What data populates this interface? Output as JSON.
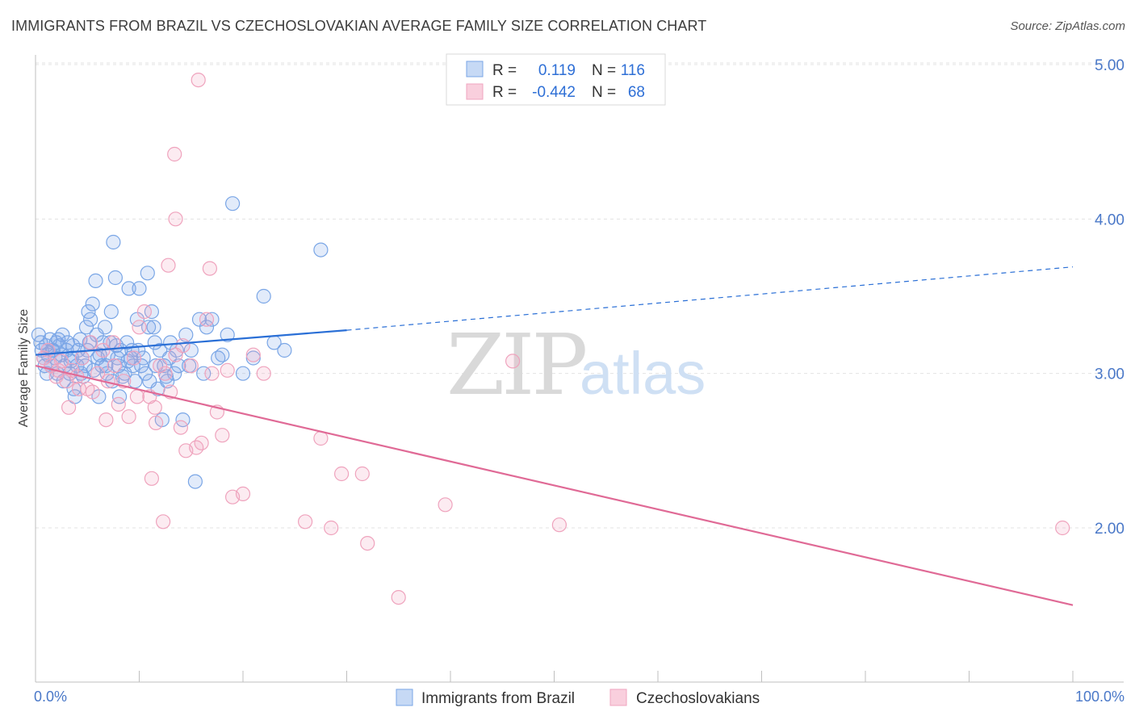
{
  "chart_data": {
    "type": "scatter",
    "title": "IMMIGRANTS FROM BRAZIL VS CZECHOSLOVAKIAN AVERAGE FAMILY SIZE CORRELATION CHART",
    "source": "Source: ZipAtlas.com",
    "ylabel": "Average Family Size",
    "xlim": [
      0,
      100
    ],
    "ylim": [
      1.0,
      5.2
    ],
    "x_tick_labels": [
      "0.0%",
      "100.0%"
    ],
    "y_ticks": [
      {
        "value": 5.0,
        "label": "5.00"
      },
      {
        "value": 4.0,
        "label": "4.00"
      },
      {
        "value": 3.0,
        "label": "3.00"
      },
      {
        "value": 2.0,
        "label": "2.00"
      }
    ],
    "grid": "horizontal-dashed",
    "legend_position": "top-center",
    "watermark": [
      "ZIP",
      "atlas"
    ],
    "series": [
      {
        "name": "Immigrants from Brazil",
        "color": "#7aa6e6",
        "line_color": "#2a6fd6",
        "r_label": "R =",
        "r_value": " 0.119",
        "n_label": "N =",
        "n_value": "116",
        "trend": {
          "x0": 0,
          "y0": 3.12,
          "x1": 30,
          "y1": 3.28,
          "dash_x1": 100,
          "dash_y1": 3.69
        },
        "points": [
          [
            0.3,
            3.25
          ],
          [
            0.5,
            3.2
          ],
          [
            0.6,
            3.15
          ],
          [
            0.8,
            3.1
          ],
          [
            1.0,
            3.18
          ],
          [
            1.2,
            3.12
          ],
          [
            1.4,
            3.22
          ],
          [
            1.5,
            3.05
          ],
          [
            1.7,
            3.15
          ],
          [
            1.9,
            3.1
          ],
          [
            2.0,
            3.2
          ],
          [
            2.1,
            3.0
          ],
          [
            2.3,
            3.18
          ],
          [
            2.5,
            3.12
          ],
          [
            2.6,
            3.25
          ],
          [
            2.8,
            3.05
          ],
          [
            3.0,
            3.15
          ],
          [
            3.1,
            3.2
          ],
          [
            3.3,
            3.0
          ],
          [
            3.5,
            3.1
          ],
          [
            3.6,
            3.18
          ],
          [
            3.8,
            2.85
          ],
          [
            4.0,
            3.05
          ],
          [
            4.1,
            3.15
          ],
          [
            4.3,
            3.22
          ],
          [
            4.5,
            3.1
          ],
          [
            4.6,
            2.98
          ],
          [
            4.8,
            3.05
          ],
          [
            5.0,
            3.15
          ],
          [
            5.2,
            3.2
          ],
          [
            5.3,
            3.35
          ],
          [
            5.5,
            3.45
          ],
          [
            5.6,
            3.02
          ],
          [
            5.8,
            3.6
          ],
          [
            6.0,
            3.1
          ],
          [
            6.2,
            3.12
          ],
          [
            6.4,
            3.05
          ],
          [
            6.5,
            3.2
          ],
          [
            6.7,
            3.3
          ],
          [
            6.9,
            3.0
          ],
          [
            7.0,
            3.12
          ],
          [
            7.2,
            3.2
          ],
          [
            7.4,
            2.95
          ],
          [
            7.5,
            3.85
          ],
          [
            7.7,
            3.62
          ],
          [
            7.9,
            3.1
          ],
          [
            8.0,
            3.05
          ],
          [
            8.2,
            3.15
          ],
          [
            8.4,
            2.98
          ],
          [
            8.6,
            3.0
          ],
          [
            8.8,
            3.2
          ],
          [
            9.0,
            3.55
          ],
          [
            9.2,
            3.1
          ],
          [
            9.4,
            3.05
          ],
          [
            9.6,
            2.95
          ],
          [
            9.8,
            3.35
          ],
          [
            10.0,
            3.55
          ],
          [
            10.2,
            3.05
          ],
          [
            10.4,
            3.1
          ],
          [
            10.6,
            3.0
          ],
          [
            10.8,
            3.65
          ],
          [
            11.0,
            2.95
          ],
          [
            11.2,
            3.4
          ],
          [
            11.4,
            3.3
          ],
          [
            11.6,
            3.05
          ],
          [
            11.8,
            2.9
          ],
          [
            12.0,
            3.15
          ],
          [
            12.2,
            2.7
          ],
          [
            12.4,
            3.05
          ],
          [
            12.6,
            2.98
          ],
          [
            13.0,
            3.2
          ],
          [
            13.4,
            3.0
          ],
          [
            13.8,
            3.05
          ],
          [
            14.2,
            2.7
          ],
          [
            14.5,
            3.25
          ],
          [
            15.0,
            3.15
          ],
          [
            15.4,
            2.3
          ],
          [
            15.8,
            3.35
          ],
          [
            16.2,
            3.0
          ],
          [
            17.0,
            3.35
          ],
          [
            17.6,
            3.1
          ],
          [
            18.5,
            3.25
          ],
          [
            19.0,
            4.1
          ],
          [
            20.0,
            3.0
          ],
          [
            21.0,
            3.1
          ],
          [
            22.0,
            3.5
          ],
          [
            23.0,
            3.2
          ],
          [
            24.0,
            3.15
          ],
          [
            27.5,
            3.8
          ],
          [
            1.1,
            3.0
          ],
          [
            2.7,
            2.95
          ],
          [
            3.4,
            3.08
          ],
          [
            4.9,
            3.3
          ],
          [
            6.1,
            2.85
          ],
          [
            7.3,
            3.4
          ],
          [
            8.1,
            2.85
          ],
          [
            9.3,
            3.15
          ],
          [
            10.9,
            3.3
          ],
          [
            12.9,
            3.1
          ],
          [
            0.9,
            3.05
          ],
          [
            1.6,
            3.15
          ],
          [
            2.2,
            3.22
          ],
          [
            3.7,
            2.9
          ],
          [
            4.4,
            3.0
          ],
          [
            5.1,
            3.4
          ],
          [
            5.9,
            3.25
          ],
          [
            6.8,
            3.05
          ],
          [
            7.8,
            3.18
          ],
          [
            8.9,
            3.08
          ],
          [
            9.9,
            3.15
          ],
          [
            11.5,
            3.2
          ],
          [
            12.7,
            2.95
          ],
          [
            13.6,
            3.15
          ],
          [
            14.8,
            3.05
          ],
          [
            16.5,
            3.3
          ],
          [
            18.0,
            3.12
          ]
        ]
      },
      {
        "name": "Czechoslovakians",
        "color": "#f0a6c0",
        "line_color": "#e06a96",
        "r_label": "R =",
        "r_value": "-0.442",
        "n_label": "N =",
        "n_value": " 68",
        "trend": {
          "x0": 0,
          "y0": 3.05,
          "x1": 100,
          "y1": 1.5
        },
        "points": [
          [
            0.8,
            3.1
          ],
          [
            1.5,
            3.05
          ],
          [
            2.0,
            2.98
          ],
          [
            2.5,
            3.08
          ],
          [
            3.0,
            2.95
          ],
          [
            3.5,
            3.02
          ],
          [
            4.0,
            2.98
          ],
          [
            4.5,
            3.1
          ],
          [
            5.0,
            2.9
          ],
          [
            5.5,
            2.88
          ],
          [
            6.0,
            3.0
          ],
          [
            6.5,
            3.15
          ],
          [
            7.0,
            2.95
          ],
          [
            7.5,
            3.2
          ],
          [
            8.0,
            2.8
          ],
          [
            8.5,
            2.95
          ],
          [
            9.0,
            2.72
          ],
          [
            9.5,
            3.1
          ],
          [
            10.0,
            3.3
          ],
          [
            10.5,
            3.4
          ],
          [
            11.0,
            2.85
          ],
          [
            11.5,
            2.78
          ],
          [
            12.0,
            3.05
          ],
          [
            12.5,
            3.0
          ],
          [
            13.0,
            2.88
          ],
          [
            13.5,
            3.12
          ],
          [
            14.0,
            2.65
          ],
          [
            14.5,
            2.5
          ],
          [
            15.0,
            3.05
          ],
          [
            15.5,
            2.52
          ],
          [
            16.0,
            2.55
          ],
          [
            16.5,
            3.35
          ],
          [
            17.0,
            3.0
          ],
          [
            17.5,
            2.75
          ],
          [
            18.0,
            2.6
          ],
          [
            18.5,
            3.02
          ],
          [
            19.0,
            2.2
          ],
          [
            20.0,
            2.22
          ],
          [
            21.0,
            3.12
          ],
          [
            22.0,
            3.0
          ],
          [
            13.5,
            4.0
          ],
          [
            16.8,
            3.68
          ],
          [
            13.4,
            4.42
          ],
          [
            15.7,
            4.9
          ],
          [
            11.2,
            2.32
          ],
          [
            12.3,
            2.04
          ],
          [
            26.0,
            2.04
          ],
          [
            28.5,
            2.0
          ],
          [
            32.0,
            1.9
          ],
          [
            29.5,
            2.35
          ],
          [
            31.5,
            2.35
          ],
          [
            27.5,
            2.58
          ],
          [
            35.0,
            1.55
          ],
          [
            39.5,
            2.15
          ],
          [
            46.0,
            3.08
          ],
          [
            50.5,
            2.02
          ],
          [
            99.0,
            2.0
          ],
          [
            12.8,
            3.7
          ],
          [
            3.2,
            2.78
          ],
          [
            5.3,
            3.2
          ],
          [
            6.8,
            2.7
          ],
          [
            9.8,
            2.85
          ],
          [
            14.2,
            3.18
          ],
          [
            1.2,
            3.15
          ],
          [
            2.2,
            3.02
          ],
          [
            4.2,
            2.9
          ],
          [
            7.6,
            3.05
          ],
          [
            11.6,
            2.68
          ]
        ]
      }
    ]
  }
}
